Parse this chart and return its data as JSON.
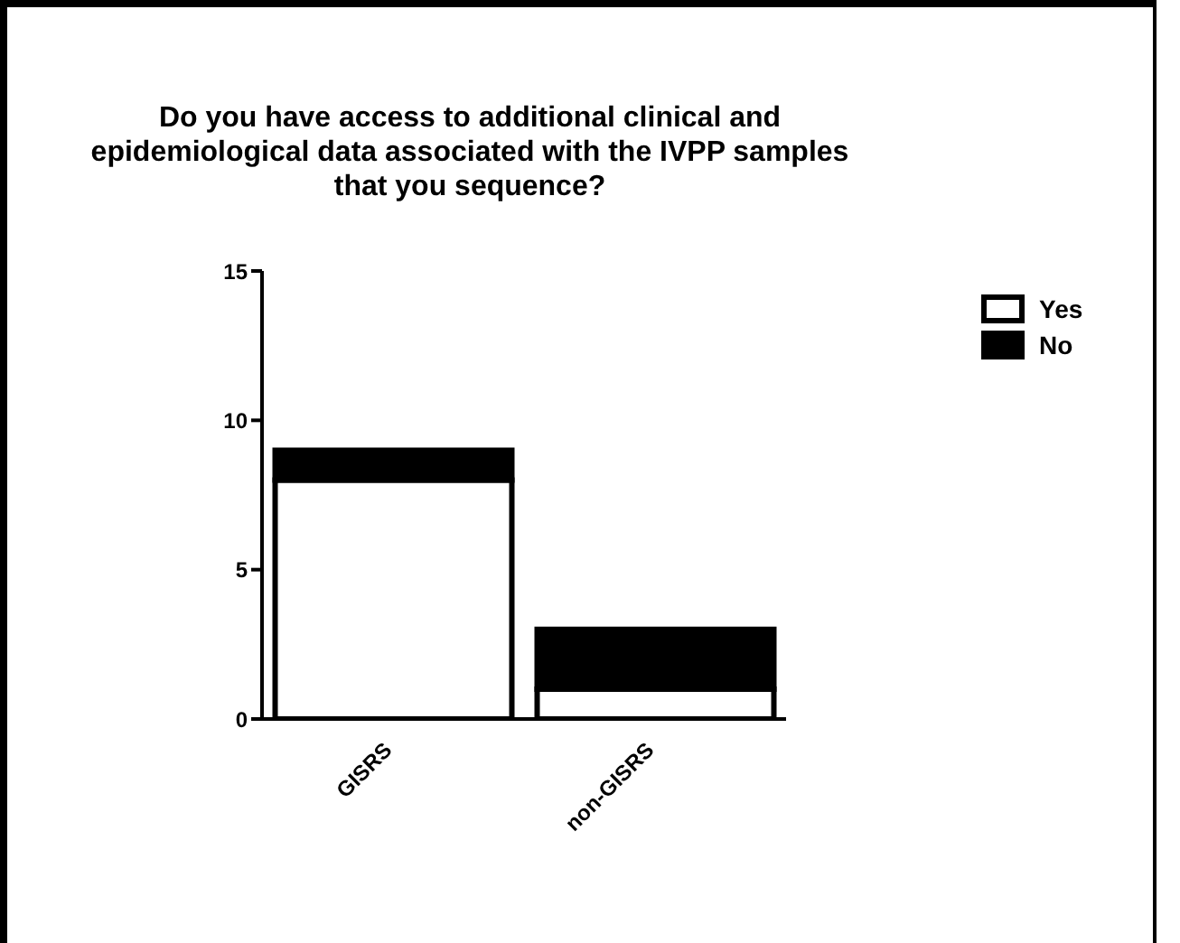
{
  "chart_data": {
    "type": "bar",
    "title": "Do you have access to additional clinical and epidemiological data associated with the IVPP samples that you sequence?",
    "categories": [
      "GISRS",
      "non-GISRS"
    ],
    "stacked": true,
    "series": [
      {
        "name": "Yes",
        "color": "#ffffff",
        "values": [
          8,
          1
        ]
      },
      {
        "name": "No",
        "color": "#000000",
        "values": [
          1,
          2
        ]
      }
    ],
    "ylim": [
      0,
      15
    ],
    "yticks": [
      0,
      5,
      10,
      15
    ],
    "legend": "top right"
  }
}
